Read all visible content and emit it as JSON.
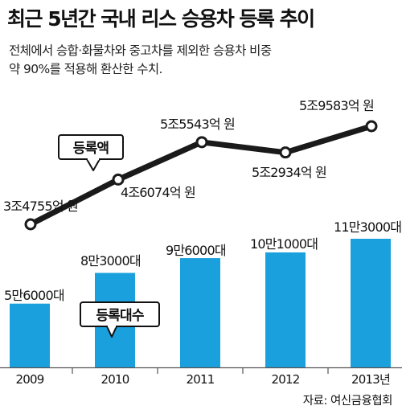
{
  "title": "최근 5년간 국내 리스 승용차 등록 추이",
  "subtitle_lines": [
    "전체에서 승합·화물차와 중고차를 제외한 승용차 비중",
    "약 90%를 적용해 환산한 수치."
  ],
  "source": "자료: 여신금융협회",
  "colors": {
    "bar": "#1aa0dc",
    "line": "#1a1a1a",
    "marker_fill": "#ffffff",
    "axis": "#555555"
  },
  "chart_data": {
    "type": "bar+line",
    "categories": [
      "2009",
      "2010",
      "2011",
      "2012",
      "2013년"
    ],
    "series": [
      {
        "name": "등록액",
        "type": "line",
        "unit": "억 원",
        "values": [
          34755,
          46074,
          55543,
          52934,
          59583
        ],
        "labels": [
          "3조4755억 원",
          "4조6074억 원",
          "5조5543억 원",
          "5조2934억 원",
          "5조9583억 원"
        ]
      },
      {
        "name": "등록대수",
        "type": "bar",
        "unit": "대",
        "values": [
          56000,
          83000,
          96000,
          101000,
          113000
        ],
        "labels": [
          "5만6000대",
          "8만3000대",
          "9만6000대",
          "10만1000대",
          "11만3000대"
        ]
      }
    ],
    "legend_labels": [
      "등록액",
      "등록대수"
    ],
    "grid": false
  }
}
